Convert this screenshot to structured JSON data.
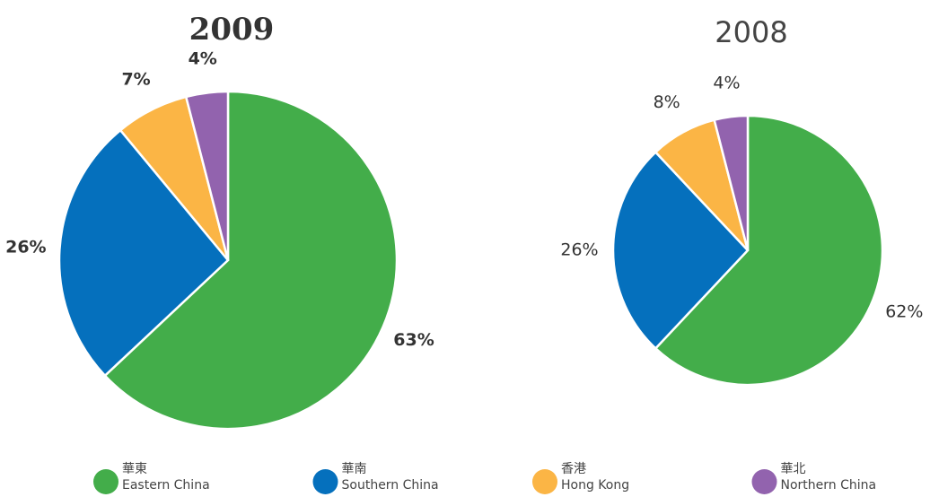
{
  "chart_data": [
    {
      "type": "pie",
      "title": "2009",
      "values": [
        63,
        26,
        7,
        4
      ],
      "value_labels": [
        "63%",
        "26%",
        "7%",
        "4%"
      ]
    },
    {
      "type": "pie",
      "title": "2008",
      "values": [
        62,
        26,
        8,
        4
      ],
      "value_labels": [
        "62%",
        "26%",
        "8%",
        "4%"
      ]
    }
  ],
  "legend": [
    {
      "label_zh": "華東",
      "label_en": "Eastern China",
      "color": "#43ad4a"
    },
    {
      "label_zh": "華南",
      "label_en": "Southern China",
      "color": "#0570bd"
    },
    {
      "label_zh": "香港",
      "label_en": "Hong Kong",
      "color": "#fbb545"
    },
    {
      "label_zh": "華北",
      "label_en": "Northern China",
      "color": "#9263ae"
    }
  ]
}
